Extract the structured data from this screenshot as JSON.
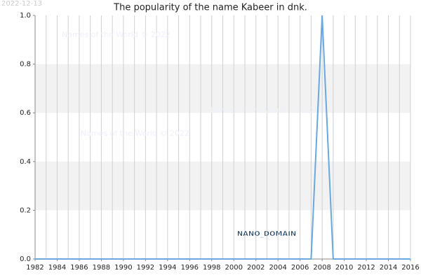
{
  "chart_data": {
    "type": "line",
    "title": "The popularity of the name Kabeer in dnk.",
    "date_stamp": "2022-12-13",
    "watermarks": [
      "Names of the World © 2022",
      "Names of the World © 2022",
      "Names of the World © 2022"
    ],
    "domain_label": "NANO_DOMAIN",
    "x": [
      1982,
      1983,
      1984,
      1985,
      1986,
      1987,
      1988,
      1989,
      1990,
      1991,
      1992,
      1993,
      1994,
      1995,
      1996,
      1997,
      1998,
      1999,
      2000,
      2001,
      2002,
      2003,
      2004,
      2005,
      2006,
      2007,
      2008,
      2009,
      2010,
      2011,
      2012,
      2013,
      2014,
      2015,
      2016
    ],
    "series": [
      {
        "name": "Kabeer",
        "color": "#6aa8e0",
        "values": [
          0,
          0,
          0,
          0,
          0,
          0,
          0,
          0,
          0,
          0,
          0,
          0,
          0,
          0,
          0,
          0,
          0,
          0,
          0,
          0,
          0,
          0,
          0,
          0,
          0,
          0,
          1,
          0,
          0,
          0,
          0,
          0,
          0,
          0,
          0
        ]
      }
    ],
    "xlim": [
      1982,
      2016
    ],
    "xticks": [
      1982,
      1984,
      1986,
      1988,
      1990,
      1992,
      1994,
      1996,
      1998,
      2000,
      2002,
      2004,
      2006,
      2008,
      2010,
      2012,
      2014,
      2016
    ],
    "ylim": [
      0,
      1
    ],
    "yticks": [
      {
        "value": 0,
        "label": "0.0"
      },
      0.2,
      0.4,
      0.6,
      0.8,
      {
        "value": 1,
        "label": "1.0"
      }
    ],
    "grid": true
  }
}
